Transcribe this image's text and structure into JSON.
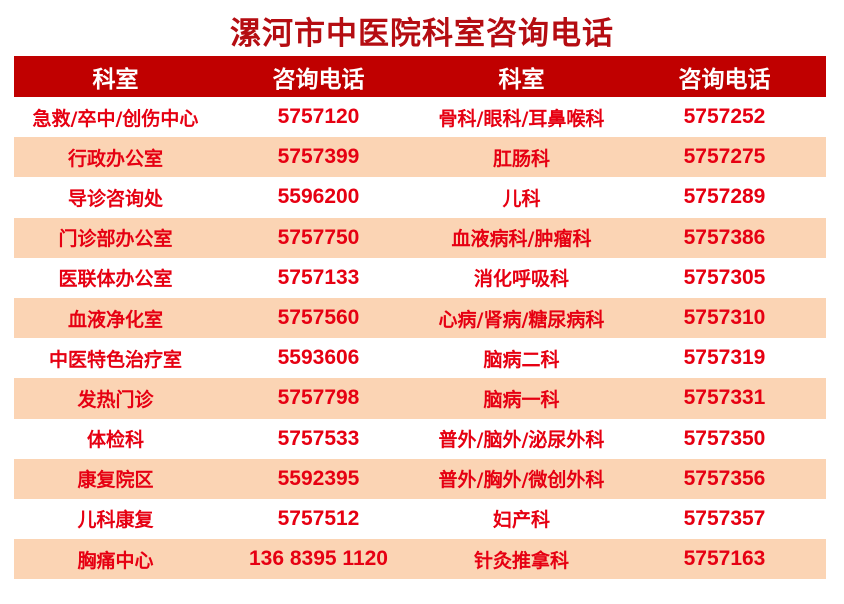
{
  "title": "漯河市中医院科室咨询电话",
  "headers": [
    "科室",
    "咨询电话",
    "科室",
    "咨询电话"
  ],
  "colors": {
    "header_bg": "#c00000",
    "text": "#e60012",
    "alt_row": "#fbd4b4",
    "title": "#b50d12"
  },
  "rows": [
    [
      "急救/卒中/创伤中心",
      "5757120",
      "骨科/眼科/耳鼻喉科",
      "5757252"
    ],
    [
      "行政办公室",
      "5757399",
      "肛肠科",
      "5757275"
    ],
    [
      "导诊咨询处",
      "5596200",
      "儿科",
      "5757289"
    ],
    [
      "门诊部办公室",
      "5757750",
      "血液病科/肿瘤科",
      "5757386"
    ],
    [
      "医联体办公室",
      "5757133",
      "消化呼吸科",
      "5757305"
    ],
    [
      "血液净化室",
      "5757560",
      "心病/肾病/糖尿病科",
      "5757310"
    ],
    [
      "中医特色治疗室",
      "5593606",
      "脑病二科",
      "5757319"
    ],
    [
      "发热门诊",
      "5757798",
      "脑病一科",
      "5757331"
    ],
    [
      "体检科",
      "5757533",
      "普外/脑外/泌尿外科",
      "5757350"
    ],
    [
      "康复院区",
      "5592395",
      "普外/胸外/微创外科",
      "5757356"
    ],
    [
      "儿科康复",
      "5757512",
      "妇产科",
      "5757357"
    ],
    [
      "胸痛中心",
      "136 8395 1120",
      "针灸推拿科",
      "5757163"
    ]
  ]
}
